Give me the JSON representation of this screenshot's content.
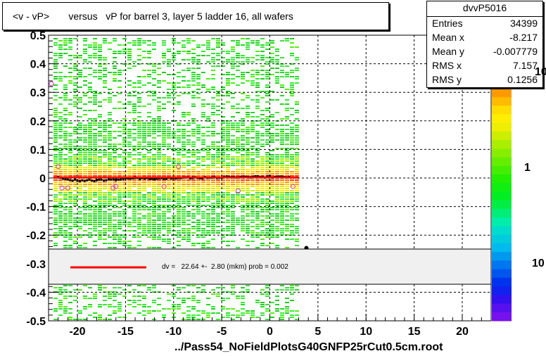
{
  "header": {
    "title": "<v - vP>       versus   vP for barrel 3, layer 5 ladder 16, all wafers"
  },
  "stats": {
    "name": "dvvP5016",
    "rows": [
      {
        "label": "Entries",
        "value": "34399"
      },
      {
        "label": "Mean x",
        "value": "-8.217"
      },
      {
        "label": "Mean y",
        "value": "-0.007779"
      },
      {
        "label": "RMS x",
        "value": "7.157"
      },
      {
        "label": "RMS y",
        "value": "0.1256"
      }
    ]
  },
  "fit": {
    "text": "dv =   22.64 +-  2.80 (mkm) prob = 0.002",
    "line_color": "#ff0000"
  },
  "colz": {
    "labels": [
      "10",
      "1",
      "10"
    ]
  },
  "footer": {
    "filename": "../Pass54_NoFieldPlotsG40GNFP25rCut0.5cm.root"
  },
  "chart_data": {
    "type": "heatmap",
    "title": "<v - vP>       versus   vP for barrel 3, layer 5 ladder 16, all wafers",
    "xlim": [
      -23,
      23
    ],
    "ylim": [
      -0.5,
      0.5
    ],
    "x_ticks": [
      "-20",
      "-15",
      "-10",
      "-5",
      "0",
      "5",
      "10",
      "15",
      "20"
    ],
    "y_ticks": [
      "0.5",
      "0.4",
      "0.3",
      "0.2",
      "0.1",
      "0",
      "-0.1",
      "-0.2",
      "-0.3",
      "-0.4",
      "-0.5"
    ],
    "grid": true,
    "filled_x_range": [
      -22.5,
      3
    ],
    "profile": {
      "x": [
        -22,
        -20,
        -18,
        -16,
        -14,
        -12,
        -10,
        -8,
        -6,
        -4,
        -2,
        0,
        2
      ],
      "y": [
        0.002,
        -0.01,
        -0.008,
        -0.005,
        0,
        -0.004,
        0,
        0,
        0.002,
        0.003,
        0.003,
        0.004,
        0.004
      ]
    },
    "outlier_points": {
      "x": [
        -22.7,
        -22,
        -21.6,
        -21,
        -16.3,
        -16,
        -11,
        -9.5,
        -3.3,
        2.4
      ],
      "y": [
        0.33,
        0.04,
        -0.035,
        -0.035,
        -0.035,
        -0.03,
        -0.03,
        0.04,
        -0.045,
        -0.03
      ]
    },
    "fit_line": {
      "x": [
        -22.5,
        3
      ],
      "y": [
        0.0023,
        0.0023
      ]
    }
  }
}
